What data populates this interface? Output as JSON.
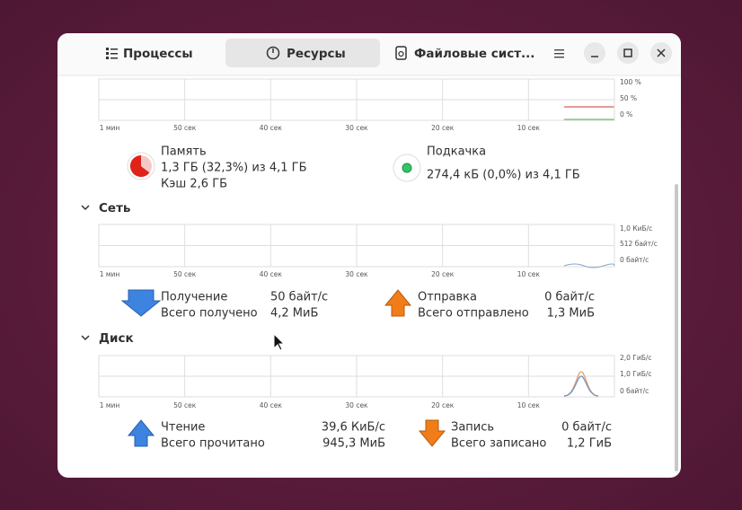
{
  "tabs": [
    "Процессы",
    "Ресурсы",
    "Файловые сист..."
  ],
  "memory_graph": {
    "x_labels": [
      "1 мин",
      "50 сек",
      "40 сек",
      "30 сек",
      "20 сек",
      "10 сек"
    ],
    "y_labels": [
      "100 %",
      "50 %",
      "0 %"
    ]
  },
  "memory": {
    "label": "Память",
    "value": "1,3 ГБ (32,3%) из 4,1 ГБ",
    "cache": "Кэш 2,6 ГБ"
  },
  "swap": {
    "label": "Подкачка",
    "value": "274,4 кБ (0,0%) из 4,1 ГБ"
  },
  "network": {
    "title": "Сеть",
    "graph": {
      "x_labels": [
        "1 мин",
        "50 сек",
        "40 сек",
        "30 сек",
        "20 сек",
        "10 сек"
      ],
      "y_labels": [
        "1,0 КиБ/с",
        "512 байт/с",
        "0 байт/с"
      ]
    },
    "receive": {
      "label": "Получение",
      "rate": "50 байт/с",
      "total_label": "Всего получено",
      "total": "4,2 МиБ"
    },
    "send": {
      "label": "Отправка",
      "rate": "0 байт/с",
      "total_label": "Всего отправлено",
      "total": "1,3 МиБ"
    }
  },
  "disk": {
    "title": "Диск",
    "graph": {
      "x_labels": [
        "1 мин",
        "50 сек",
        "40 сек",
        "30 сек",
        "20 сек",
        "10 сек"
      ],
      "y_labels": [
        "2,0 ГиБ/с",
        "1,0 ГиБ/с",
        "0 байт/с"
      ]
    },
    "read": {
      "label": "Чтение",
      "rate": "39,6 КиБ/с",
      "total_label": "Всего прочитано",
      "total": "945,3 МиБ"
    },
    "write": {
      "label": "Запись",
      "rate": "0 байт/с",
      "total_label": "Всего записано",
      "total": "1,2 ГиБ"
    }
  }
}
